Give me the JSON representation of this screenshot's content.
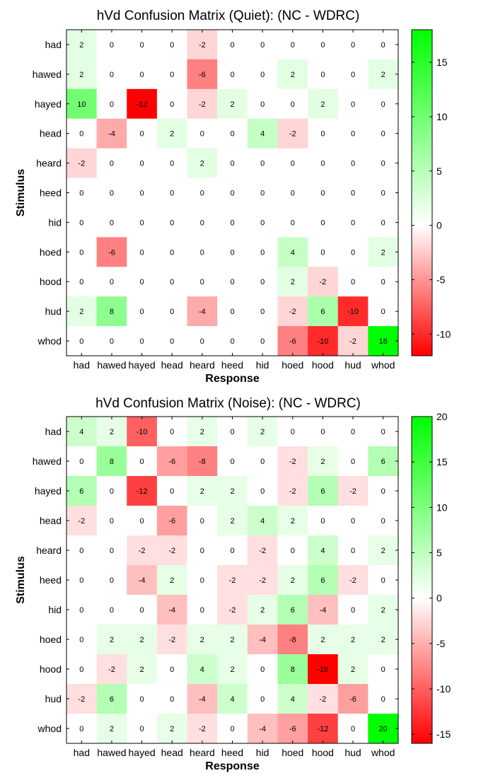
{
  "chart_data": [
    {
      "type": "heatmap",
      "title": "hVd Confusion Matrix (Quiet): (NC - WDRC)",
      "xlabel": "Response",
      "ylabel": "Stimulus",
      "x_categories": [
        "had",
        "hawed",
        "hayed",
        "head",
        "heard",
        "heed",
        "hid",
        "hoed",
        "hood",
        "hud",
        "whod"
      ],
      "y_categories": [
        "had",
        "hawed",
        "hayed",
        "head",
        "heard",
        "heed",
        "hid",
        "hoed",
        "hood",
        "hud",
        "whod"
      ],
      "values": [
        [
          2,
          0,
          0,
          0,
          -2,
          0,
          0,
          0,
          0,
          0,
          0
        ],
        [
          2,
          0,
          0,
          0,
          -6,
          0,
          0,
          2,
          0,
          0,
          2
        ],
        [
          10,
          0,
          -12,
          0,
          -2,
          2,
          0,
          0,
          2,
          0,
          0
        ],
        [
          0,
          -4,
          0,
          2,
          0,
          0,
          4,
          -2,
          0,
          0,
          0
        ],
        [
          -2,
          0,
          0,
          0,
          2,
          0,
          0,
          0,
          0,
          0,
          0
        ],
        [
          0,
          0,
          0,
          0,
          0,
          0,
          0,
          0,
          0,
          0,
          0
        ],
        [
          0,
          0,
          0,
          0,
          0,
          0,
          0,
          0,
          0,
          0,
          0
        ],
        [
          0,
          -6,
          0,
          0,
          0,
          0,
          0,
          4,
          0,
          0,
          2
        ],
        [
          0,
          0,
          0,
          0,
          0,
          0,
          0,
          2,
          -2,
          0,
          0
        ],
        [
          2,
          8,
          0,
          0,
          -4,
          0,
          0,
          -2,
          6,
          -10,
          0
        ],
        [
          0,
          0,
          0,
          0,
          0,
          0,
          0,
          -6,
          -10,
          -2,
          18
        ]
      ],
      "colorbar": {
        "range": [
          -12,
          18
        ],
        "ticks": [
          -10,
          -5,
          0,
          5,
          10,
          15
        ]
      },
      "colors": {
        "negative": "#ff0000",
        "zero": "#ffffff",
        "positive": "#00ff00"
      }
    },
    {
      "type": "heatmap",
      "title": "hVd Confusion Matrix (Noise): (NC - WDRC)",
      "xlabel": "Response",
      "ylabel": "Stimulus",
      "x_categories": [
        "had",
        "hawed",
        "hayed",
        "head",
        "heard",
        "heed",
        "hid",
        "hoed",
        "hood",
        "hud",
        "whod"
      ],
      "y_categories": [
        "had",
        "hawed",
        "hayed",
        "head",
        "heard",
        "heed",
        "hid",
        "hoed",
        "hood",
        "hud",
        "whod"
      ],
      "values": [
        [
          4,
          2,
          -10,
          0,
          2,
          0,
          2,
          0,
          0,
          0,
          0
        ],
        [
          0,
          8,
          0,
          -6,
          -8,
          0,
          0,
          -2,
          2,
          0,
          6
        ],
        [
          6,
          0,
          -12,
          0,
          2,
          2,
          0,
          -2,
          6,
          -2,
          0
        ],
        [
          -2,
          0,
          0,
          -6,
          0,
          2,
          4,
          2,
          0,
          0,
          0
        ],
        [
          0,
          0,
          -2,
          -2,
          0,
          0,
          -2,
          0,
          4,
          0,
          2
        ],
        [
          0,
          0,
          -4,
          2,
          0,
          -2,
          -2,
          2,
          6,
          -2,
          0
        ],
        [
          0,
          0,
          0,
          -4,
          0,
          -2,
          2,
          6,
          -4,
          0,
          2
        ],
        [
          0,
          2,
          2,
          -2,
          2,
          2,
          -4,
          -8,
          2,
          2,
          2
        ],
        [
          0,
          -2,
          2,
          0,
          4,
          2,
          0,
          8,
          -16,
          2,
          0
        ],
        [
          -2,
          6,
          0,
          0,
          -4,
          4,
          0,
          4,
          -2,
          -6,
          0
        ],
        [
          0,
          2,
          0,
          2,
          -2,
          0,
          -4,
          -6,
          -12,
          0,
          20
        ]
      ],
      "colorbar": {
        "range": [
          -16,
          20
        ],
        "ticks": [
          -15,
          -10,
          -5,
          0,
          5,
          10,
          15,
          20
        ]
      },
      "colors": {
        "negative": "#ff0000",
        "zero": "#ffffff",
        "positive": "#00ff00"
      }
    }
  ]
}
